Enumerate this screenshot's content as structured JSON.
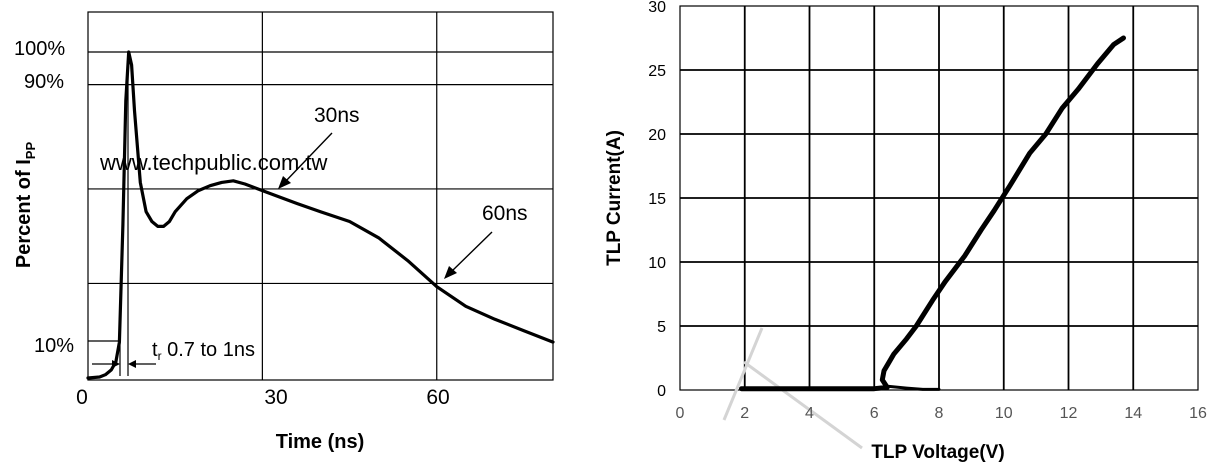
{
  "chart_data": [
    {
      "type": "line",
      "title": "",
      "xlabel": "Time (ns)",
      "ylabel": "Percent of I",
      "ylabel_sub": "PP",
      "xlim": [
        0,
        80
      ],
      "ylim": [
        0,
        100
      ],
      "x_ticks": [
        "0",
        "30",
        "60"
      ],
      "y_ticks": [
        "10%",
        "90%",
        "100%"
      ],
      "grid": true,
      "series": [
        {
          "x": [
            0,
            2,
            3,
            4,
            4.8,
            5.4,
            6,
            6.5,
            7,
            7.5,
            8,
            9,
            10,
            11,
            12,
            13,
            14,
            15,
            17,
            19,
            21,
            23,
            25,
            27,
            30,
            33,
            36,
            40,
            45,
            50,
            55,
            60,
            65,
            70,
            75,
            80
          ],
          "y": [
            0,
            0.3,
            1,
            2.5,
            5,
            11,
            47,
            85,
            100,
            96,
            82,
            60,
            51,
            48,
            46.5,
            46.5,
            48,
            51,
            55,
            57.5,
            59,
            60,
            60.5,
            59.5,
            57.5,
            55.5,
            53.5,
            51,
            48,
            43,
            36,
            28,
            22,
            18,
            14.5,
            11
          ]
        }
      ],
      "annotations": [
        {
          "text": "30ns",
          "x": 30,
          "y": 57.5
        },
        {
          "text": "60ns",
          "x": 60,
          "y": 28
        },
        {
          "text": "t",
          "sub": "r",
          "rest": " 0.7 to 1ns"
        },
        {
          "text": "www.techpublic.com.tw"
        }
      ]
    },
    {
      "type": "scatter",
      "title": "",
      "xlabel": "TLP Voltage(V)",
      "ylabel": "TLP Current(A)",
      "xlim": [
        0,
        16
      ],
      "ylim": [
        0,
        30
      ],
      "x_ticks": [
        "0",
        "2",
        "4",
        "6",
        "8",
        "10",
        "12",
        "14",
        "16"
      ],
      "y_ticks": [
        "0",
        "5",
        "10",
        "15",
        "20",
        "25",
        "30"
      ],
      "grid": true,
      "series": [
        {
          "x": [
            1.9,
            3,
            4,
            5,
            6,
            6.4,
            6.25,
            6.3,
            6.6,
            7,
            7.3,
            7.8,
            8.2,
            8.8,
            9.3,
            9.7,
            10.2,
            10.8,
            11.3,
            11.8,
            12.3,
            12.9,
            13.4,
            13.7
          ],
          "y": [
            0.1,
            0.1,
            0.1,
            0.1,
            0.1,
            0.2,
            0.8,
            1.5,
            2.8,
            4,
            5,
            7,
            8.5,
            10.5,
            12.5,
            14,
            16,
            18.5,
            20,
            22,
            23.5,
            25.5,
            27,
            27.5
          ]
        },
        {
          "x": [
            6.4,
            7,
            7.5,
            8
          ],
          "y": [
            0.3,
            0.15,
            0.05,
            0.05
          ]
        }
      ]
    }
  ]
}
